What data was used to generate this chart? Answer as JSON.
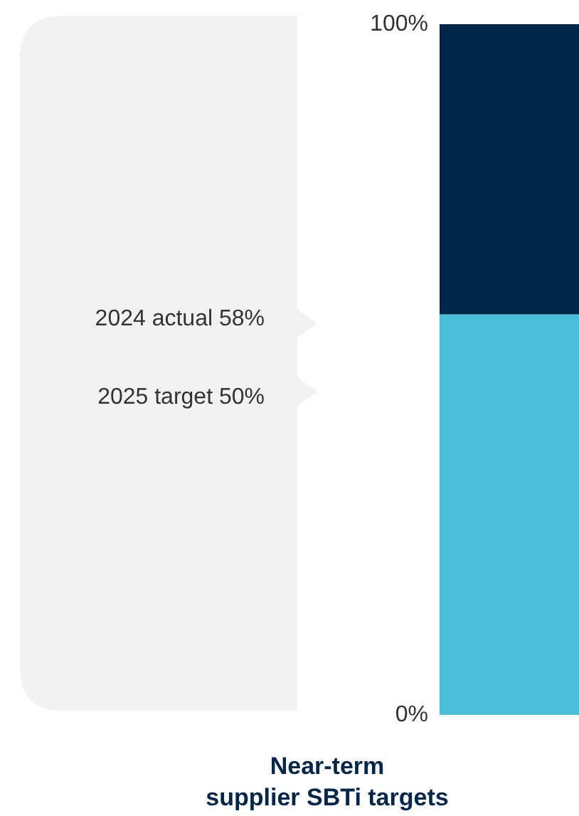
{
  "chart_data": {
    "type": "bar",
    "stacked": true,
    "categories": [
      null
    ],
    "series": [
      {
        "color": "#4bbfd9",
        "values": [
          58
        ]
      },
      {
        "color": "#00264a",
        "values": [
          42
        ]
      }
    ],
    "ylim": [
      0,
      100
    ],
    "yticks": [
      {
        "value": 0,
        "label": "0%"
      },
      {
        "value": 100,
        "label": "100%"
      }
    ],
    "grid": false,
    "tick_labels": "y",
    "xlabel": "Near-term\nsupplier SBTi targets",
    "annotations": [
      "2024 actual 58%",
      "2025 target 50%"
    ]
  }
}
